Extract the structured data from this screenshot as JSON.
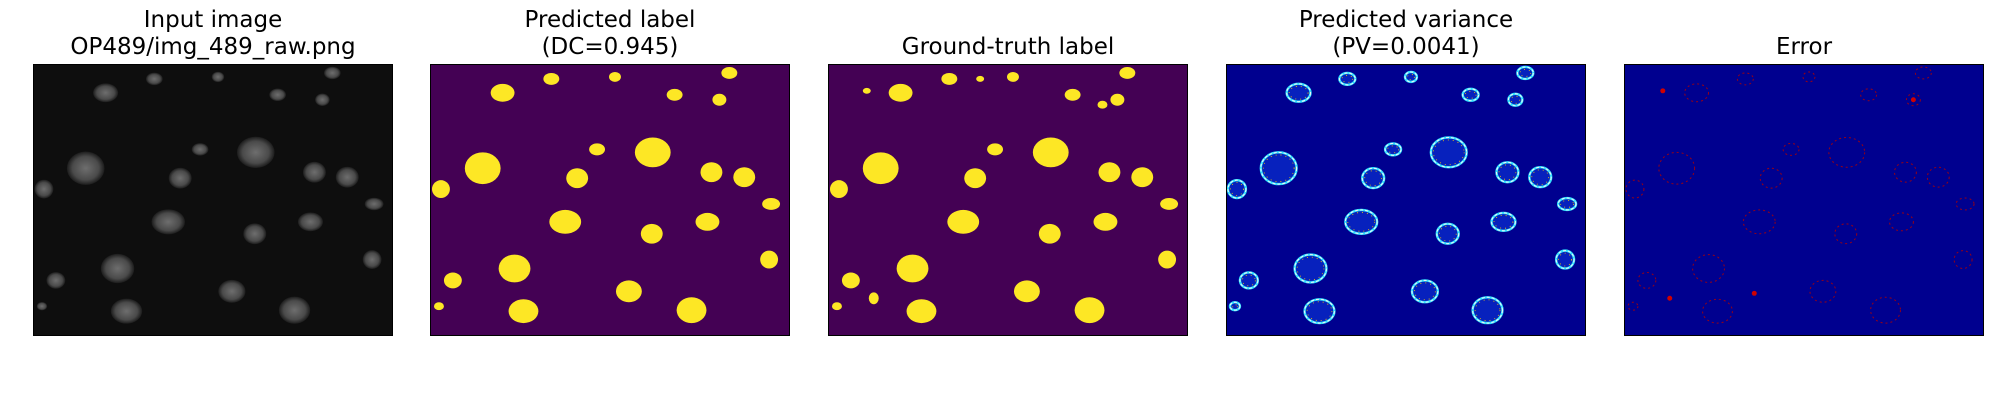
{
  "panels": [
    {
      "id": "input",
      "title_lines": [
        "Input image",
        "OP489/img_489_raw.png"
      ],
      "background": "#0e0e0e"
    },
    {
      "id": "pred",
      "title_lines": [
        "Predicted label",
        "(DC=0.945)"
      ],
      "background": "#440154",
      "foreground": "#fde725"
    },
    {
      "id": "gt",
      "title_lines": [
        "Ground-truth label"
      ],
      "background": "#440154",
      "foreground": "#fde725"
    },
    {
      "id": "var",
      "title_lines": [
        "Predicted variance",
        "(PV=0.0041)"
      ],
      "background": "#00008f"
    },
    {
      "id": "err",
      "title_lines": [
        "Error"
      ],
      "background": "#00008f",
      "foreground": "#b00000"
    }
  ]
}
